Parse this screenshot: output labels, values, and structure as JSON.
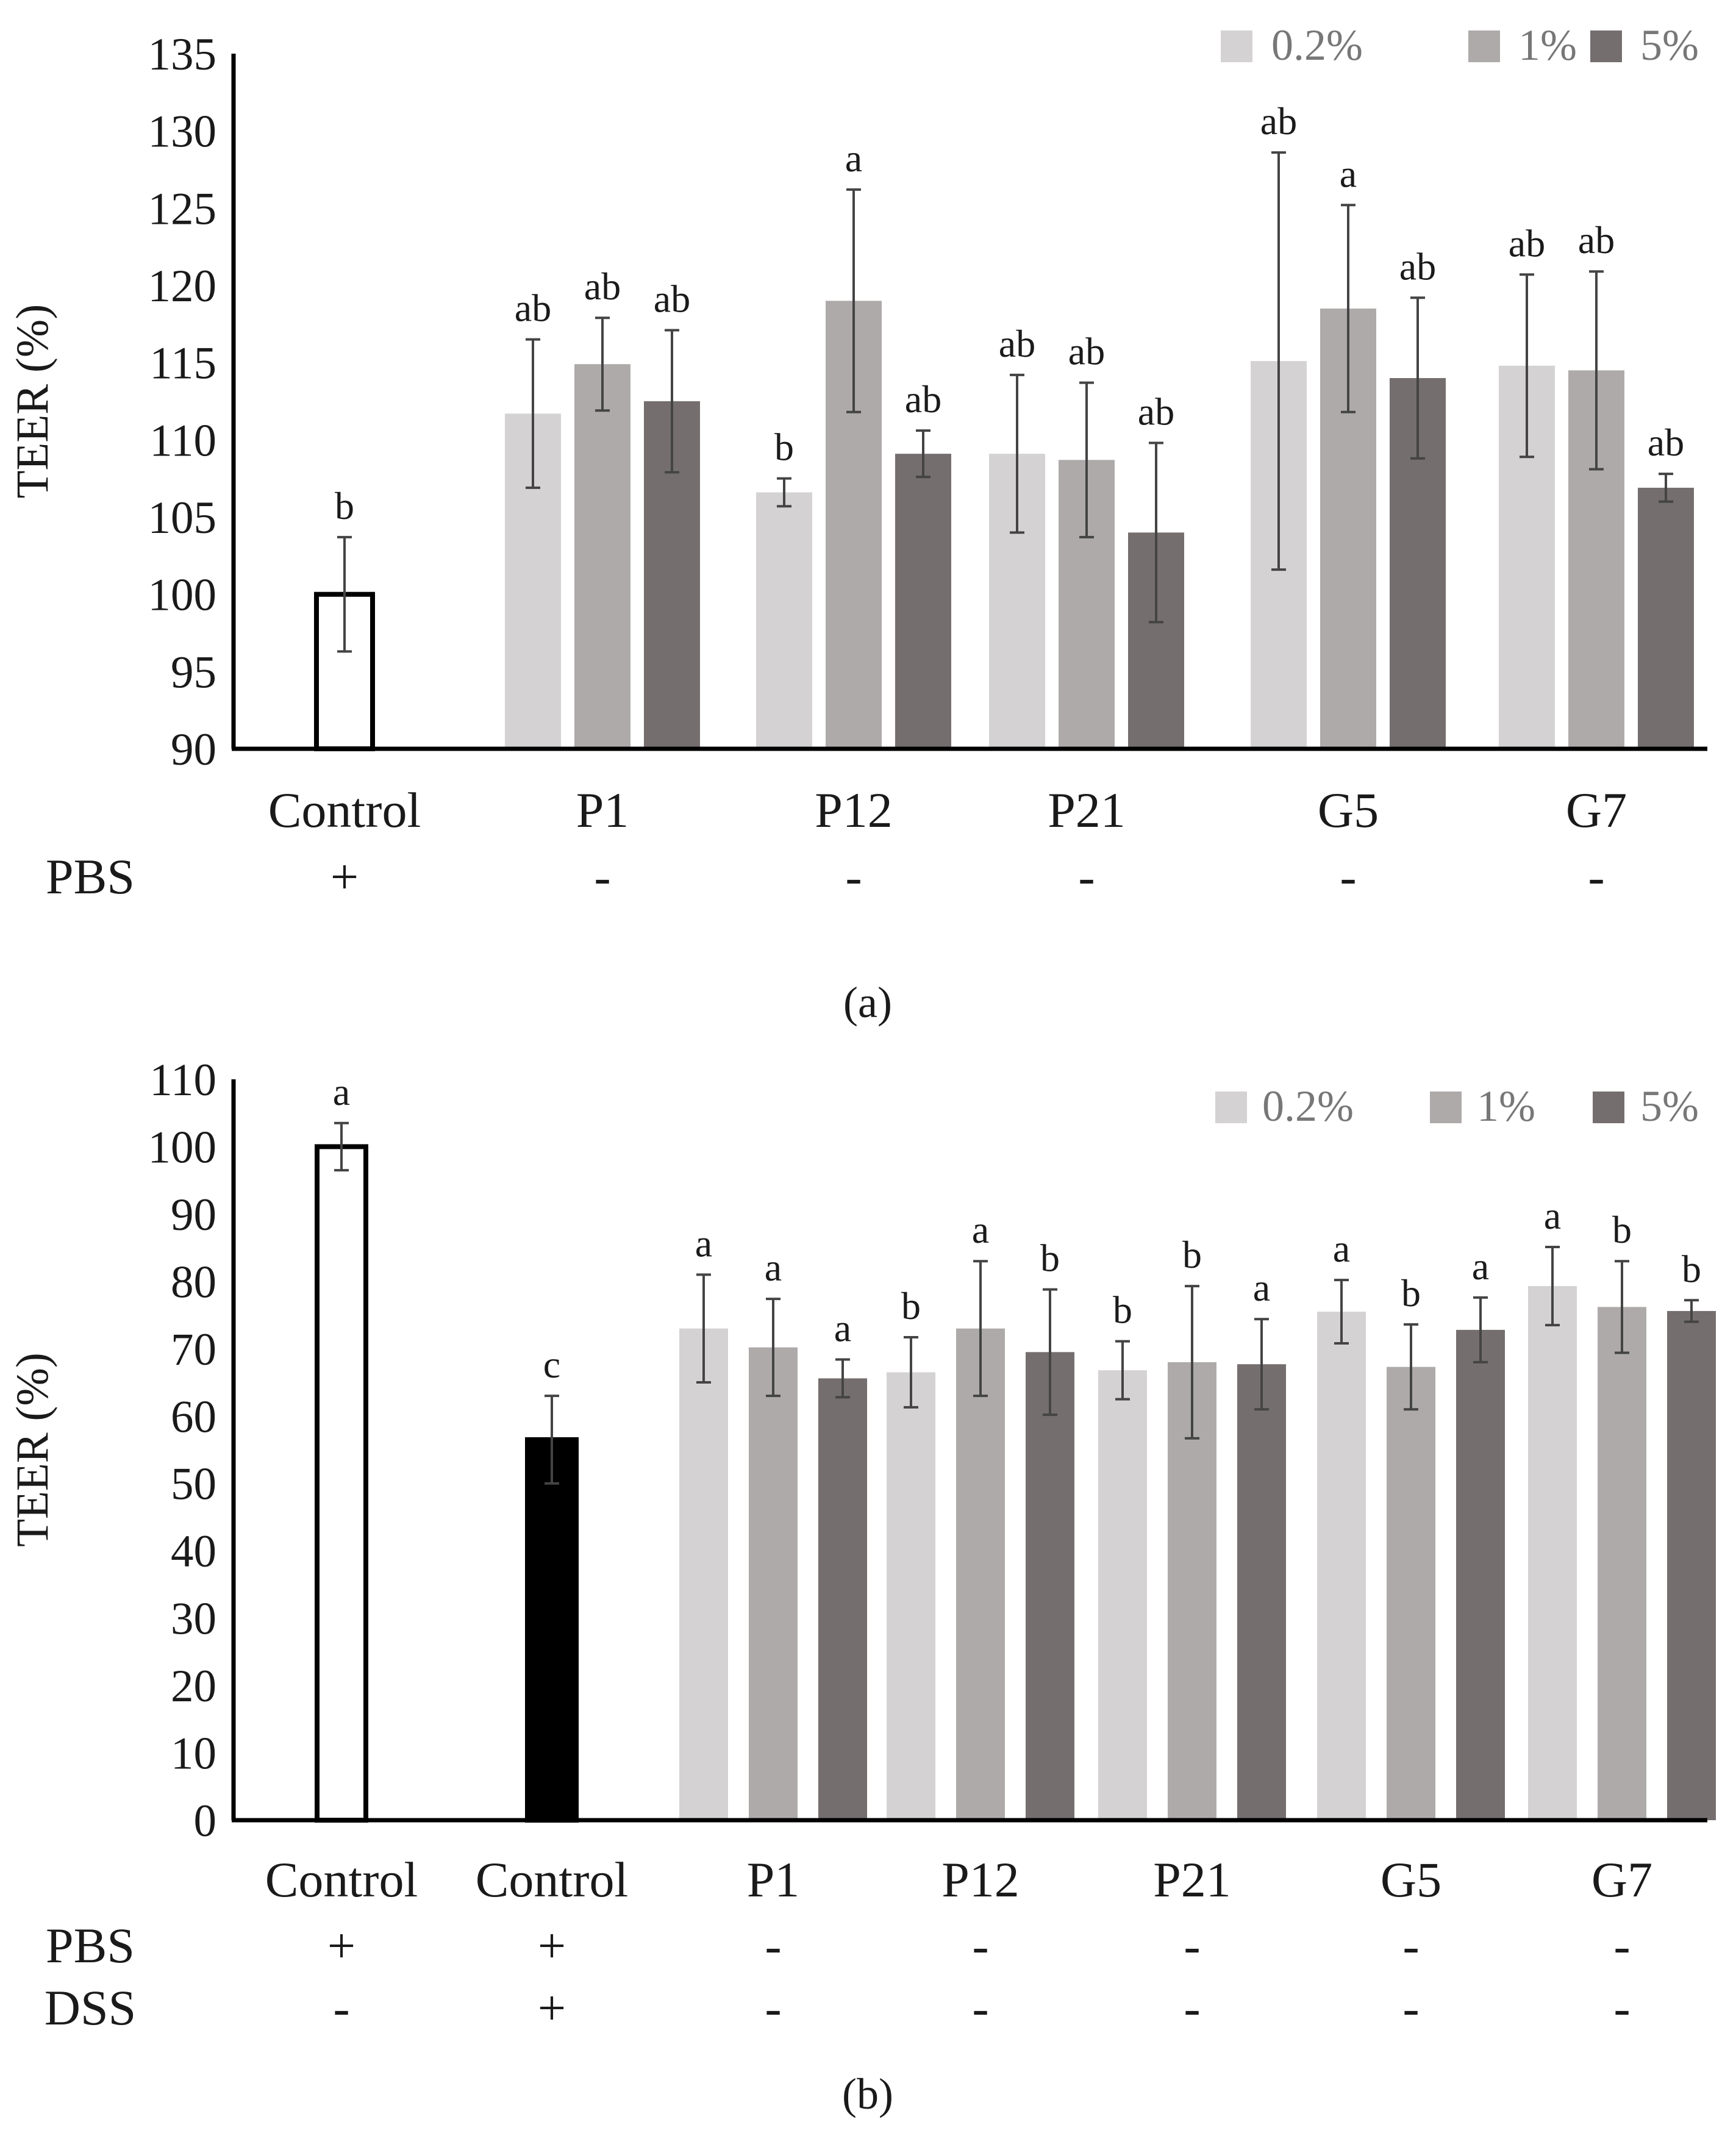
{
  "chart_data": [
    {
      "type": "bar",
      "panel": "(a)",
      "ylabel": "TEER (%)",
      "ylim": [
        90,
        135
      ],
      "yticks": [
        "135",
        "130",
        "125",
        "120",
        "115",
        "110",
        "105",
        "100",
        "95",
        "90"
      ],
      "legend": [
        "0.2%",
        "1%",
        "5%"
      ],
      "colors": {
        "c0": "#d4d2d2",
        "c1": "#aeaaaa",
        "c2": "#756e6e",
        "control_pbs": "#ffffff",
        "control_dss": "#000000"
      },
      "row_labels": [
        "PBS"
      ],
      "groups": [
        {
          "label": "Control",
          "rows": [
            "+"
          ],
          "bars": [
            {
              "series": "control_pbs",
              "value": 100,
              "err": 3.7,
              "sig": "b"
            }
          ]
        },
        {
          "label": "P1",
          "rows": [
            "-"
          ],
          "bars": [
            {
              "series": "c0",
              "value": 111.7,
              "err": 4.8,
              "sig": "ab"
            },
            {
              "series": "c1",
              "value": 114.9,
              "err": 3,
              "sig": "ab"
            },
            {
              "series": "c2",
              "value": 112.5,
              "err": 4.6,
              "sig": "ab"
            }
          ]
        },
        {
          "label": "P12",
          "rows": [
            "-"
          ],
          "bars": [
            {
              "series": "c0",
              "value": 106.6,
              "err": 0.9,
              "sig": "b"
            },
            {
              "series": "c1",
              "value": 119,
              "err": 7.2,
              "sig": "a"
            },
            {
              "series": "c2",
              "value": 109.1,
              "err": 1.5,
              "sig": "ab"
            }
          ]
        },
        {
          "label": "P21",
          "rows": [
            "-"
          ],
          "bars": [
            {
              "series": "c0",
              "value": 109.1,
              "err": 5.1,
              "sig": "ab"
            },
            {
              "series": "c1",
              "value": 108.7,
              "err": 5,
              "sig": "ab"
            },
            {
              "series": "c2",
              "value": 104,
              "err": 5.8,
              "sig": "ab"
            }
          ]
        },
        {
          "label": "G5",
          "rows": [
            "-"
          ],
          "bars": [
            {
              "series": "c0",
              "value": 115.1,
              "err": 13.5,
              "sig": "ab"
            },
            {
              "series": "c1",
              "value": 118.5,
              "err": 6.7,
              "sig": "a"
            },
            {
              "series": "c2",
              "value": 114,
              "err": 5.2,
              "sig": "ab"
            }
          ]
        },
        {
          "label": "G7",
          "rows": [
            "-"
          ],
          "bars": [
            {
              "series": "c0",
              "value": 114.8,
              "err": 5.9,
              "sig": "ab"
            },
            {
              "series": "c1",
              "value": 114.5,
              "err": 6.4,
              "sig": "ab"
            },
            {
              "series": "c2",
              "value": 106.9,
              "err": 0.9,
              "sig": "ab"
            }
          ]
        }
      ]
    },
    {
      "type": "bar",
      "panel": "(b)",
      "ylabel": "TEER (%)",
      "ylim": [
        0,
        110
      ],
      "yticks": [
        "110",
        "100",
        "90",
        "80",
        "70",
        "60",
        "50",
        "40",
        "30",
        "20",
        "10",
        "0"
      ],
      "legend": [
        "0.2%",
        "1%",
        "5%"
      ],
      "colors": {
        "c0": "#d4d2d2",
        "c1": "#aeaaaa",
        "c2": "#756e6e",
        "control_pbs": "#ffffff",
        "control_dss": "#000000"
      },
      "row_labels": [
        "PBS",
        "DSS"
      ],
      "groups": [
        {
          "label": "Control",
          "rows": [
            "+",
            "-"
          ],
          "bars": [
            {
              "series": "control_pbs",
              "value": 100,
              "err": 3.5,
              "sig": "a"
            }
          ]
        },
        {
          "label": "Control",
          "rows": [
            "+",
            "+"
          ],
          "bars": [
            {
              "series": "control_dss",
              "value": 56.5,
              "err": 6.5,
              "sig": "c"
            }
          ]
        },
        {
          "label": "P1",
          "rows": [
            "-",
            "-"
          ],
          "bars": [
            {
              "series": "c0",
              "value": 73,
              "err": 8,
              "sig": "a"
            },
            {
              "series": "c1",
              "value": 70.2,
              "err": 7.2,
              "sig": "a"
            },
            {
              "series": "c2",
              "value": 65.6,
              "err": 2.8,
              "sig": "a"
            }
          ]
        },
        {
          "label": "P12",
          "rows": [
            "-",
            "-"
          ],
          "bars": [
            {
              "series": "c0",
              "value": 66.5,
              "err": 5.2,
              "sig": "b"
            },
            {
              "series": "c1",
              "value": 73,
              "err": 10,
              "sig": "a"
            },
            {
              "series": "c2",
              "value": 69.5,
              "err": 9.3,
              "sig": "b"
            }
          ]
        },
        {
          "label": "P21",
          "rows": [
            "-",
            "-"
          ],
          "bars": [
            {
              "series": "c0",
              "value": 66.8,
              "err": 4.3,
              "sig": "b"
            },
            {
              "series": "c1",
              "value": 68,
              "err": 11.3,
              "sig": "b"
            },
            {
              "series": "c2",
              "value": 67.7,
              "err": 6.7,
              "sig": "a"
            }
          ]
        },
        {
          "label": "G5",
          "rows": [
            "-",
            "-"
          ],
          "bars": [
            {
              "series": "c0",
              "value": 75.5,
              "err": 4.7,
              "sig": "a"
            },
            {
              "series": "c1",
              "value": 67.3,
              "err": 6.3,
              "sig": "b"
            },
            {
              "series": "c2",
              "value": 72.8,
              "err": 4.8,
              "sig": "a"
            }
          ]
        },
        {
          "label": "G7",
          "rows": [
            "-",
            "-"
          ],
          "bars": [
            {
              "series": "c0",
              "value": 79.3,
              "err": 5.8,
              "sig": "a"
            },
            {
              "series": "c1",
              "value": 76.2,
              "err": 6.8,
              "sig": "b"
            },
            {
              "series": "c2",
              "value": 75.6,
              "err": 1.6,
              "sig": "b"
            }
          ]
        }
      ]
    }
  ]
}
